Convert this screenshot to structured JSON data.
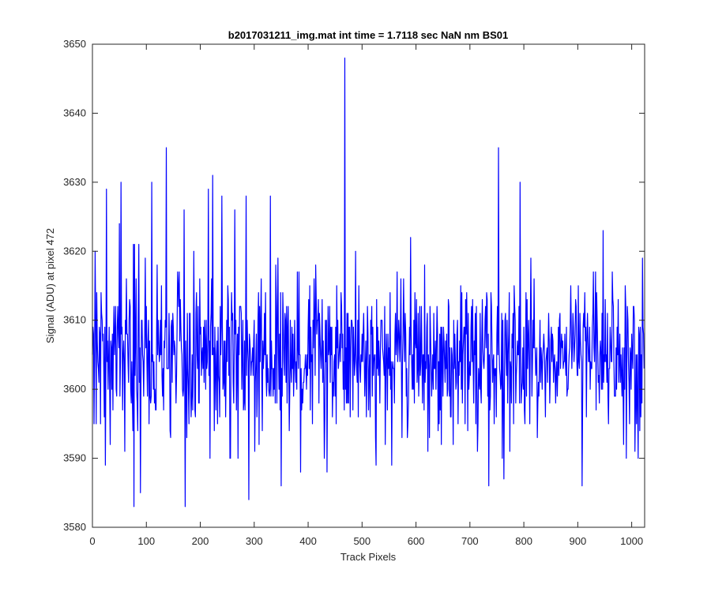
{
  "chart_data": {
    "type": "line",
    "title": "b2017031211_img.mat int time = 1.7118 sec  NaN nm BS01",
    "xlabel": "Track Pixels",
    "ylabel": "Signal (ADU) at pixel 472",
    "xlim": [
      0,
      1024
    ],
    "ylim": [
      3580,
      3650
    ],
    "xticks": [
      0,
      100,
      200,
      300,
      400,
      500,
      600,
      700,
      800,
      900,
      1000
    ],
    "yticks": [
      3580,
      3590,
      3600,
      3610,
      3620,
      3630,
      3640,
      3650
    ],
    "grid": false,
    "legend": "none",
    "series_color": "#0000ff",
    "noise": {
      "mean": 3605,
      "std": 5.8,
      "min": 3583,
      "max": 3635,
      "count": 1024
    },
    "series": [
      {
        "points": [
          [
            0,
            3605
          ],
          [
            5,
            3620
          ],
          [
            10,
            3604
          ],
          [
            15,
            3595
          ],
          [
            20,
            3608
          ],
          [
            24,
            3589
          ],
          [
            26,
            3629
          ],
          [
            30,
            3604
          ],
          [
            33,
            3592
          ],
          [
            40,
            3612
          ],
          [
            45,
            3599
          ],
          [
            50,
            3624
          ],
          [
            53,
            3630
          ],
          [
            57,
            3605
          ],
          [
            60,
            3591
          ],
          [
            65,
            3608
          ],
          [
            70,
            3612
          ],
          [
            75,
            3594
          ],
          [
            77,
            3583
          ],
          [
            80,
            3607
          ],
          [
            84,
            3594
          ],
          [
            86,
            3621
          ],
          [
            89,
            3585
          ],
          [
            93,
            3605
          ],
          [
            100,
            3612
          ],
          [
            105,
            3595
          ],
          [
            110,
            3630
          ],
          [
            115,
            3598
          ],
          [
            120,
            3618
          ],
          [
            125,
            3605
          ],
          [
            130,
            3599
          ],
          [
            135,
            3610
          ],
          [
            137,
            3635
          ],
          [
            140,
            3603
          ],
          [
            145,
            3593
          ],
          [
            150,
            3609
          ],
          [
            155,
            3598
          ],
          [
            160,
            3612
          ],
          [
            165,
            3606
          ],
          [
            168,
            3599
          ],
          [
            170,
            3626
          ],
          [
            172,
            3583
          ],
          [
            175,
            3593
          ],
          [
            180,
            3611
          ],
          [
            185,
            3605
          ],
          [
            190,
            3597
          ],
          [
            200,
            3608
          ],
          [
            205,
            3603
          ],
          [
            210,
            3600
          ],
          [
            215,
            3629
          ],
          [
            218,
            3590
          ],
          [
            220,
            3611
          ],
          [
            223,
            3631
          ],
          [
            226,
            3594
          ],
          [
            230,
            3605
          ],
          [
            240,
            3628
          ],
          [
            245,
            3599
          ],
          [
            250,
            3604
          ],
          [
            255,
            3590
          ],
          [
            260,
            3611
          ],
          [
            264,
            3626
          ],
          [
            268,
            3604
          ],
          [
            270,
            3590
          ],
          [
            275,
            3612
          ],
          [
            280,
            3597
          ],
          [
            285,
            3628
          ],
          [
            288,
            3606
          ],
          [
            290,
            3584
          ],
          [
            295,
            3604
          ],
          [
            300,
            3610
          ],
          [
            305,
            3596
          ],
          [
            310,
            3612
          ],
          [
            315,
            3594
          ],
          [
            320,
            3605
          ],
          [
            330,
            3628
          ],
          [
            335,
            3599
          ],
          [
            340,
            3618
          ],
          [
            345,
            3605
          ],
          [
            350,
            3586
          ],
          [
            355,
            3604
          ],
          [
            360,
            3612
          ],
          [
            365,
            3594
          ],
          [
            370,
            3609
          ],
          [
            380,
            3617
          ],
          [
            385,
            3605
          ],
          [
            390,
            3598
          ],
          [
            400,
            3609
          ],
          [
            410,
            3606
          ],
          [
            420,
            3598
          ],
          [
            430,
            3590
          ],
          [
            435,
            3588
          ],
          [
            440,
            3612
          ],
          [
            445,
            3596
          ],
          [
            450,
            3599
          ],
          [
            455,
            3610
          ],
          [
            460,
            3604
          ],
          [
            465,
            3600
          ],
          [
            468,
            3648
          ],
          [
            470,
            3606
          ],
          [
            475,
            3598
          ],
          [
            480,
            3610
          ],
          [
            490,
            3603
          ],
          [
            500,
            3608
          ],
          [
            505,
            3599
          ],
          [
            510,
            3612
          ],
          [
            515,
            3596
          ],
          [
            520,
            3609
          ],
          [
            530,
            3602
          ],
          [
            535,
            3610
          ],
          [
            540,
            3604
          ],
          [
            550,
            3606
          ],
          [
            560,
            3598
          ],
          [
            570,
            3604
          ],
          [
            580,
            3611
          ],
          [
            585,
            3595
          ],
          [
            590,
            3622
          ],
          [
            600,
            3606
          ],
          [
            610,
            3612
          ],
          [
            615,
            3597
          ],
          [
            620,
            3609
          ],
          [
            630,
            3602
          ],
          [
            640,
            3608
          ],
          [
            650,
            3599
          ],
          [
            660,
            3613
          ],
          [
            665,
            3596
          ],
          [
            670,
            3610
          ],
          [
            680,
            3602
          ],
          [
            690,
            3609
          ],
          [
            700,
            3604
          ],
          [
            710,
            3611
          ],
          [
            720,
            3600
          ],
          [
            730,
            3606
          ],
          [
            735,
            3586
          ],
          [
            740,
            3612
          ],
          [
            745,
            3595
          ],
          [
            750,
            3608
          ],
          [
            753,
            3635
          ],
          [
            756,
            3602
          ],
          [
            760,
            3590
          ],
          [
            765,
            3610
          ],
          [
            770,
            3598
          ],
          [
            780,
            3611
          ],
          [
            790,
            3605
          ],
          [
            793,
            3630
          ],
          [
            796,
            3600
          ],
          [
            800,
            3609
          ],
          [
            810,
            3604
          ],
          [
            820,
            3606
          ],
          [
            825,
            3593
          ],
          [
            830,
            3610
          ],
          [
            840,
            3596
          ],
          [
            850,
            3607
          ],
          [
            860,
            3603
          ],
          [
            870,
            3608
          ],
          [
            880,
            3599
          ],
          [
            890,
            3606
          ],
          [
            900,
            3602
          ],
          [
            908,
            3586
          ],
          [
            912,
            3609
          ],
          [
            920,
            3604
          ],
          [
            930,
            3606
          ],
          [
            940,
            3598
          ],
          [
            947,
            3623
          ],
          [
            950,
            3604
          ],
          [
            960,
            3609
          ],
          [
            970,
            3599
          ],
          [
            980,
            3605
          ],
          [
            990,
            3590
          ],
          [
            1000,
            3608
          ],
          [
            1010,
            3605
          ],
          [
            1015,
            3594
          ],
          [
            1020,
            3619
          ],
          [
            1024,
            3603
          ]
        ]
      }
    ]
  }
}
